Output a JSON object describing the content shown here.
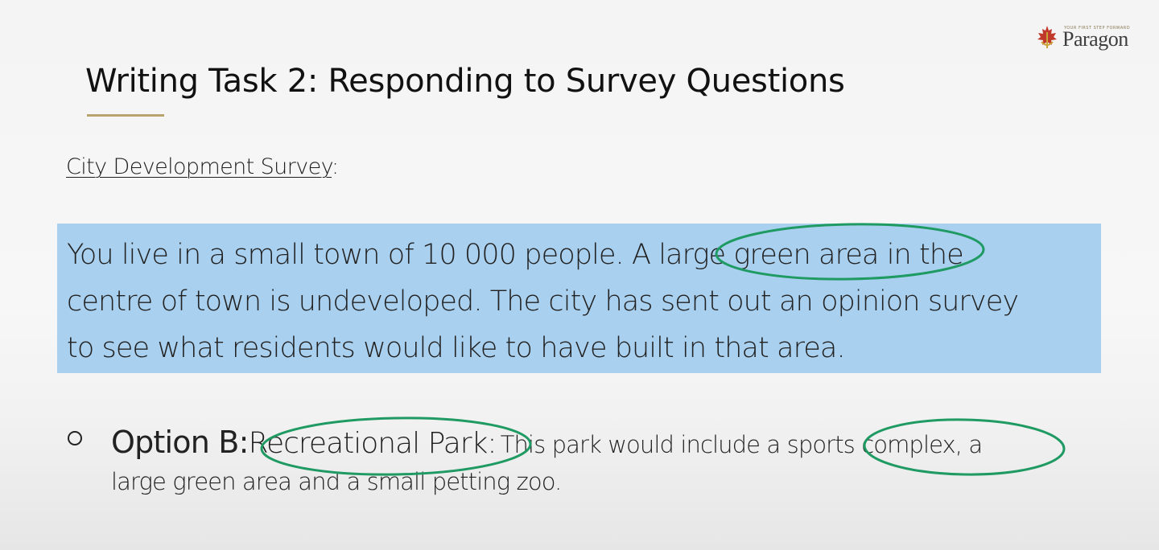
{
  "logo": {
    "tagline": "YOUR FIRST STEP FORWARD",
    "name": "Paragon"
  },
  "title": "Writing Task 2: Responding to Survey Questions",
  "survey": {
    "heading": "City Development Survey",
    "heading_suffix": ":"
  },
  "scenario": {
    "line1": "You live in a small town of 10 000 people. A large green area in the",
    "line2": "centre of town is undeveloped. The city has sent out an opinion survey",
    "line3": "to see what residents would like to have built in that area."
  },
  "option": {
    "label": "Option B:",
    "title": "Recreational Park:",
    "desc_line1": "This park would include a sports complex, a",
    "desc_line2": "large green area and a small petting zoo."
  },
  "annotations": {
    "ellipse_color": "#1e9a62",
    "circled_phrases": [
      "large green area",
      "Recreational Park",
      "sports complex"
    ]
  },
  "colors": {
    "highlight": "#a9d0ef",
    "accent_rule": "#b8a46c",
    "logo_red": "#c0392b",
    "logo_gold": "#c9a23a"
  }
}
